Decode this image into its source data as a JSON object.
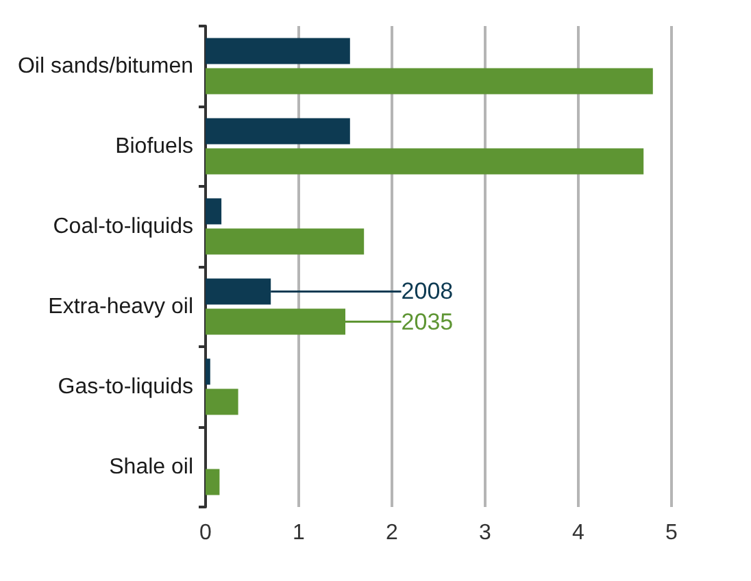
{
  "chart_data": {
    "type": "bar",
    "orientation": "horizontal",
    "categories": [
      "Oil sands/bitumen",
      "Biofuels",
      "Coal-to-liquids",
      "Extra-heavy oil",
      "Gas-to-liquids",
      "Shale oil"
    ],
    "series": [
      {
        "name": "2008",
        "color": "#0d3a52",
        "values": [
          1.55,
          1.55,
          0.17,
          0.7,
          0.05,
          0
        ]
      },
      {
        "name": "2035",
        "color": "#5e9533",
        "values": [
          4.8,
          4.7,
          1.7,
          1.5,
          0.35,
          0.15
        ]
      }
    ],
    "xlim": [
      0,
      5
    ],
    "xticks": [
      0,
      1,
      2,
      3,
      4,
      5
    ],
    "grid": "x"
  }
}
